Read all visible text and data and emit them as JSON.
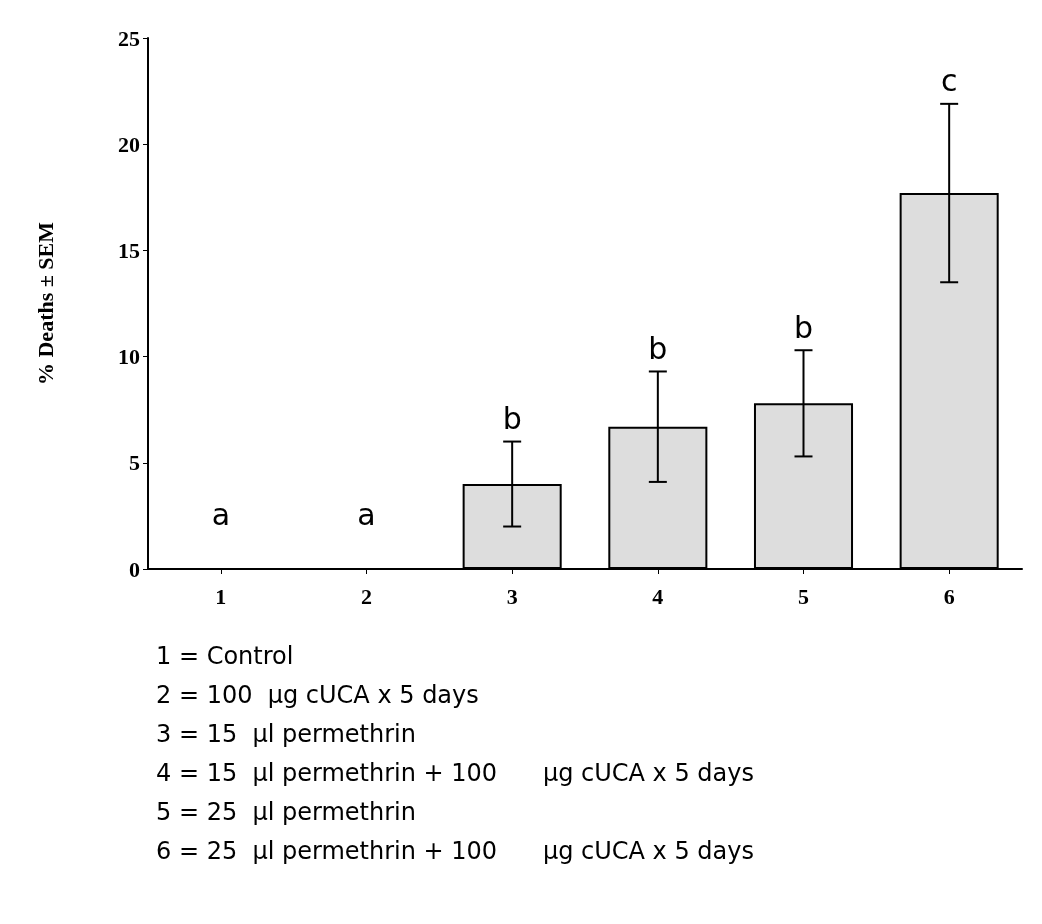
{
  "chart_data": {
    "type": "bar",
    "ylabel": "% Deaths ± SEM",
    "categories": [
      "1",
      "2",
      "3",
      "4",
      "5",
      "6"
    ],
    "values": [
      0,
      0,
      4.0,
      6.7,
      7.8,
      17.7
    ],
    "errors": [
      null,
      null,
      2.0,
      2.6,
      2.5,
      4.2
    ],
    "color": "#dddddd",
    "ylim": [
      0,
      25
    ],
    "yticks": [
      0,
      5,
      10,
      15,
      20,
      25
    ],
    "grid": false,
    "value_labels": [
      "a",
      "a",
      "b",
      "b",
      "b",
      "c"
    ],
    "annotations": [
      "1 = Control",
      "2 = 100  μg cUCA x 5 days",
      "3 = 15  μl permethrin",
      "4 = 15  μl permethrin + 100      μg cUCA x 5 days",
      "5 = 25  μl permethrin",
      "6 = 25  μl permethrin + 100      μg cUCA x 5 days"
    ]
  }
}
